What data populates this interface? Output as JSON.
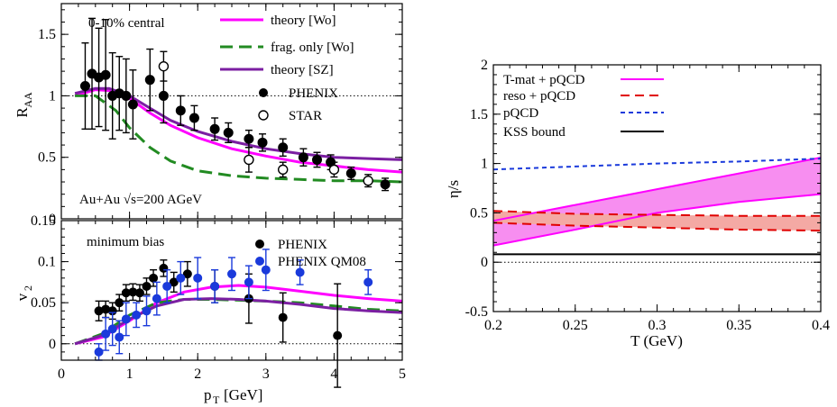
{
  "chart_data": [
    {
      "type": "scatter",
      "panel": "R_AA",
      "xlabel": "",
      "ylabel": "R",
      "ylabel_sub": "AA",
      "xlim": [
        0,
        5
      ],
      "ylim": [
        0,
        1.75
      ],
      "yticks": [
        "0",
        "0.5",
        "1",
        "1.5"
      ],
      "ytick_values": [
        0,
        0.5,
        1,
        1.5
      ],
      "reference_line": 1,
      "annotations": [
        "0-10% central",
        "Au+Au √s=200 AGeV"
      ],
      "series": [
        {
          "name": "theory [Wo]",
          "kind": "line",
          "color": "#ff00ff",
          "x": [
            0.2,
            0.5,
            0.8,
            1.0,
            1.3,
            1.6,
            2.0,
            2.5,
            3.0,
            3.5,
            4.0,
            4.5,
            5.0
          ],
          "y": [
            1.0,
            1.05,
            1.04,
            0.98,
            0.86,
            0.76,
            0.66,
            0.57,
            0.51,
            0.46,
            0.43,
            0.4,
            0.38
          ]
        },
        {
          "name": "frag. only [Wo]",
          "kind": "dashed",
          "color": "#228b22",
          "x": [
            0.2,
            0.5,
            0.8,
            1.0,
            1.3,
            1.6,
            2.0,
            2.5,
            3.0,
            3.5,
            4.0,
            4.5,
            5.0
          ],
          "y": [
            1.0,
            1.0,
            0.88,
            0.74,
            0.58,
            0.47,
            0.39,
            0.35,
            0.33,
            0.32,
            0.31,
            0.31,
            0.3
          ]
        },
        {
          "name": "theory [SZ]",
          "kind": "line",
          "color": "#7b1fa2",
          "x": [
            0.2,
            0.5,
            0.7,
            1.0,
            1.3,
            1.6,
            2.0,
            2.5,
            3.0,
            3.5,
            4.0,
            4.5,
            5.0
          ],
          "y": [
            1.02,
            1.06,
            1.06,
            1.0,
            0.9,
            0.8,
            0.71,
            0.63,
            0.57,
            0.53,
            0.5,
            0.49,
            0.48
          ]
        },
        {
          "name": "PHENIX",
          "kind": "points-filled",
          "color": "#000000",
          "x": [
            0.35,
            0.45,
            0.55,
            0.65,
            0.75,
            0.85,
            0.95,
            1.05,
            1.3,
            1.5,
            1.75,
            1.95,
            2.25,
            2.45,
            2.75,
            2.95,
            3.25,
            3.55,
            3.75,
            3.95,
            4.25,
            4.75
          ],
          "y": [
            1.08,
            1.18,
            1.15,
            1.17,
            1.0,
            1.02,
            1.0,
            0.93,
            1.13,
            1.0,
            0.88,
            0.82,
            0.73,
            0.7,
            0.65,
            0.62,
            0.58,
            0.5,
            0.48,
            0.46,
            0.37,
            0.28
          ],
          "err": [
            0.35,
            0.45,
            0.4,
            0.45,
            0.35,
            0.3,
            0.3,
            0.28,
            0.25,
            0.22,
            0.12,
            0.1,
            0.09,
            0.08,
            0.07,
            0.07,
            0.07,
            0.07,
            0.06,
            0.06,
            0.05,
            0.05
          ]
        },
        {
          "name": "STAR",
          "kind": "points-open",
          "color": "#000000",
          "x": [
            1.5,
            2.75,
            3.25,
            4.0,
            4.5
          ],
          "y": [
            1.24,
            0.48,
            0.4,
            0.4,
            0.31
          ],
          "err": [
            0.12,
            0.1,
            0.06,
            0.06,
            0.05
          ]
        }
      ]
    },
    {
      "type": "scatter",
      "panel": "v2",
      "xlabel": "p",
      "xlabel_sub": "T",
      "xlabel_unit": "[GeV]",
      "ylabel": "v",
      "ylabel_sub": "2",
      "xlim": [
        0,
        5
      ],
      "ylim": [
        -0.02,
        0.15
      ],
      "xticks": [
        "0",
        "1",
        "2",
        "3",
        "4",
        "5"
      ],
      "xtick_values": [
        0,
        1,
        2,
        3,
        4,
        5
      ],
      "yticks": [
        "0",
        "0.05",
        "0.1",
        "0.15"
      ],
      "ytick_values": [
        0,
        0.05,
        0.1,
        0.15
      ],
      "reference_line": 0,
      "annotations": [
        "minimum bias"
      ],
      "series": [
        {
          "name": "theory [Wo]",
          "kind": "line",
          "color": "#ff00ff",
          "x": [
            0.2,
            0.6,
            1.0,
            1.4,
            1.8,
            2.2,
            2.6,
            3.0,
            3.5,
            4.0,
            4.5,
            5.0
          ],
          "y": [
            0.0,
            0.008,
            0.028,
            0.05,
            0.063,
            0.069,
            0.071,
            0.069,
            0.064,
            0.059,
            0.055,
            0.052
          ]
        },
        {
          "name": "frag. only [Wo]",
          "kind": "dashed",
          "color": "#228b22",
          "x": [
            0.2,
            0.6,
            1.0,
            1.4,
            1.8,
            2.2,
            2.6,
            3.0,
            3.5,
            4.0,
            4.5,
            5.0
          ],
          "y": [
            0.0,
            0.012,
            0.035,
            0.05,
            0.054,
            0.054,
            0.053,
            0.052,
            0.05,
            0.046,
            0.042,
            0.04
          ]
        },
        {
          "name": "theory [SZ]",
          "kind": "line",
          "color": "#7b1fa2",
          "x": [
            0.2,
            0.6,
            1.0,
            1.4,
            1.8,
            2.2,
            2.6,
            3.0,
            3.5,
            4.0,
            4.5,
            5.0
          ],
          "y": [
            0.0,
            0.01,
            0.03,
            0.046,
            0.054,
            0.055,
            0.054,
            0.052,
            0.048,
            0.043,
            0.04,
            0.038
          ]
        },
        {
          "name": "PHENIX",
          "kind": "points-filled",
          "color": "#000000",
          "x": [
            0.55,
            0.65,
            0.75,
            0.85,
            0.95,
            1.05,
            1.15,
            1.25,
            1.35,
            1.5,
            1.65,
            1.85,
            2.25,
            2.75,
            3.25,
            4.05
          ],
          "y": [
            0.04,
            0.042,
            0.04,
            0.05,
            0.062,
            0.063,
            0.062,
            0.07,
            0.08,
            0.092,
            0.075,
            0.085,
            0.07,
            0.055,
            0.032,
            0.01
          ],
          "err": [
            0.012,
            0.01,
            0.01,
            0.01,
            0.01,
            0.01,
            0.01,
            0.01,
            0.01,
            0.01,
            0.012,
            0.015,
            0.02,
            0.03,
            0.03,
            0.063
          ]
        },
        {
          "name": "PHENIX QM08",
          "kind": "points-filled",
          "color": "#1a3adb",
          "x": [
            0.55,
            0.65,
            0.75,
            0.85,
            0.95,
            1.1,
            1.25,
            1.4,
            1.55,
            1.75,
            2.0,
            2.25,
            2.5,
            2.75,
            3.0,
            3.5,
            4.5
          ],
          "y": [
            -0.01,
            0.012,
            0.018,
            0.008,
            0.03,
            0.035,
            0.04,
            0.055,
            0.07,
            0.08,
            0.08,
            0.07,
            0.085,
            0.075,
            0.09,
            0.087,
            0.075
          ],
          "err": [
            0.01,
            0.02,
            0.02,
            0.02,
            0.02,
            0.015,
            0.018,
            0.02,
            0.02,
            0.02,
            0.025,
            0.02,
            0.02,
            0.02,
            0.025,
            0.015,
            0.015
          ]
        }
      ]
    },
    {
      "type": "line",
      "panel": "eta_over_s",
      "xlabel": "T (GeV)",
      "ylabel": "η/s",
      "xlim": [
        0.2,
        0.4
      ],
      "ylim": [
        -0.5,
        2.0
      ],
      "xticks": [
        "0.2",
        "0.25",
        "0.3",
        "0.35",
        "0.4"
      ],
      "xtick_values": [
        0.2,
        0.25,
        0.3,
        0.35,
        0.4
      ],
      "yticks": [
        "-0.5",
        "0",
        "0.5",
        "1",
        "1.5",
        "2"
      ],
      "ytick_values": [
        -0.5,
        0,
        0.5,
        1,
        1.5,
        2
      ],
      "reference_line": 0,
      "series": [
        {
          "name": "T-mat + pQCD",
          "kind": "band-solid",
          "color": "#ff00ff",
          "fill": "#f78ef0",
          "x": [
            0.2,
            0.25,
            0.3,
            0.35,
            0.4
          ],
          "upper": [
            0.42,
            0.58,
            0.74,
            0.9,
            1.06
          ],
          "lower": [
            0.17,
            0.33,
            0.5,
            0.61,
            0.69
          ]
        },
        {
          "name": "reso + pQCD",
          "kind": "band-dashed",
          "color": "#e00000",
          "fill": "#f4a9a4",
          "x": [
            0.2,
            0.25,
            0.3,
            0.35,
            0.4
          ],
          "upper": [
            0.52,
            0.49,
            0.48,
            0.47,
            0.47
          ],
          "lower": [
            0.4,
            0.37,
            0.35,
            0.33,
            0.32
          ]
        },
        {
          "name": "pQCD",
          "kind": "dotted",
          "color": "#1a3adb",
          "x": [
            0.2,
            0.25,
            0.3,
            0.35,
            0.4
          ],
          "y": [
            0.94,
            0.97,
            1.0,
            1.02,
            1.05
          ]
        },
        {
          "name": "KSS bound",
          "kind": "line",
          "color": "#000000",
          "x": [
            0.2,
            0.4
          ],
          "y": [
            0.08,
            0.08
          ]
        }
      ]
    }
  ]
}
